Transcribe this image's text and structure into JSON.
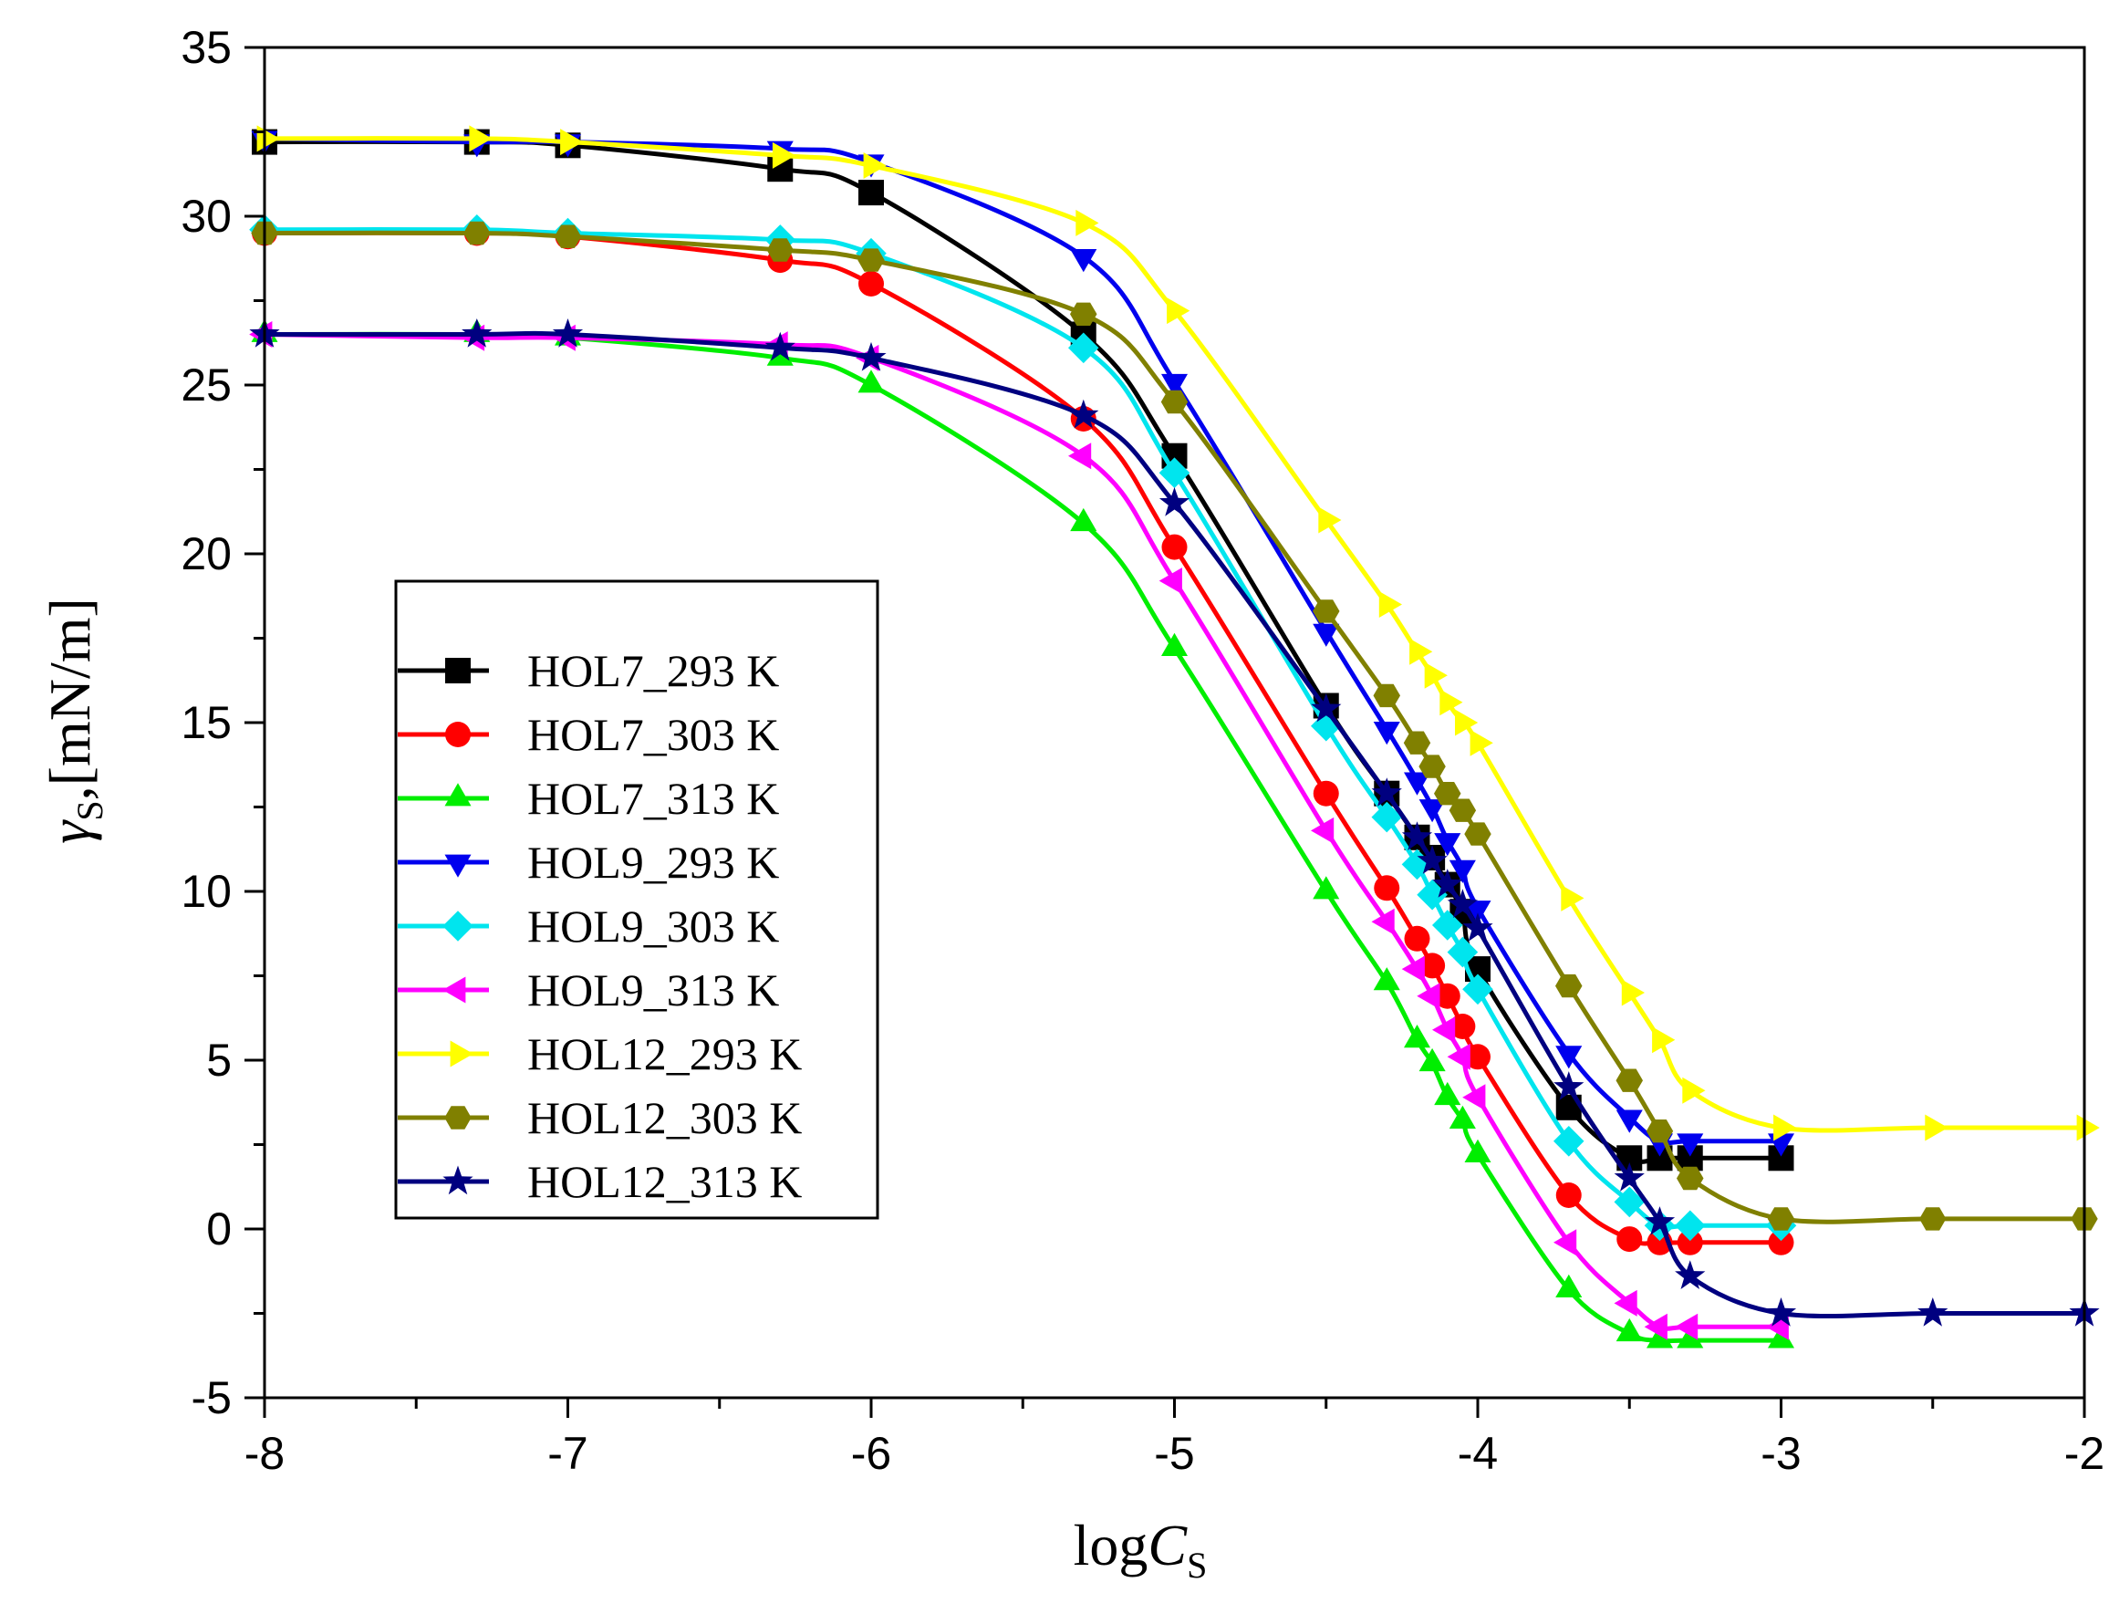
{
  "chart_data": {
    "type": "line",
    "title": "",
    "xlabel_main": "log",
    "xlabel_var": "C",
    "xlabel_sub": "S",
    "ylabel_main": "γ",
    "ylabel_sub": "S",
    "ylabel_rest": ",[mN/m]",
    "xlim": [
      -8,
      -2
    ],
    "ylim": [
      -5,
      35
    ],
    "xticks": [
      -8,
      -7,
      -6,
      -5,
      -4,
      -3,
      -2
    ],
    "xtick_labels": [
      "-8",
      "-7",
      "-6",
      "-5",
      "-4",
      "-3",
      "-2"
    ],
    "yticks": [
      -5,
      0,
      5,
      10,
      15,
      20,
      25,
      30,
      35
    ],
    "ytick_labels": [
      "-5",
      "0",
      "5",
      "10",
      "15",
      "20",
      "25",
      "30",
      "35"
    ],
    "grid": false,
    "legend_position": "center-left",
    "series": [
      {
        "name": "HOL7_293 K",
        "color": "#000000",
        "marker": "square",
        "x": [
          -8,
          -7.3,
          -7,
          -6.3,
          -6,
          -5.3,
          -5,
          -4.5,
          -4.3,
          -4.2,
          -4.15,
          -4.1,
          -4.05,
          -4,
          -3.7,
          -3.5,
          -3.4,
          -3.3,
          -3
        ],
        "y": [
          32.2,
          32.2,
          32.1,
          31.4,
          30.7,
          26.5,
          22.9,
          15.5,
          12.9,
          11.6,
          11.0,
          10.2,
          9.4,
          7.7,
          3.6,
          2.1,
          2.1,
          2.1,
          2.1
        ]
      },
      {
        "name": "HOL7_303 K",
        "color": "#ff0000",
        "marker": "circle",
        "x": [
          -8,
          -7.3,
          -7,
          -6.3,
          -6,
          -5.3,
          -5,
          -4.5,
          -4.3,
          -4.2,
          -4.15,
          -4.1,
          -4.05,
          -4,
          -3.7,
          -3.5,
          -3.4,
          -3.3,
          -3
        ],
        "y": [
          29.5,
          29.5,
          29.4,
          28.7,
          28.0,
          24.0,
          20.2,
          12.9,
          10.1,
          8.6,
          7.8,
          6.9,
          6.0,
          5.1,
          1.0,
          -0.3,
          -0.4,
          -0.4,
          -0.4
        ]
      },
      {
        "name": "HOL7_313 K",
        "color": "#00ee00",
        "marker": "triangle-up",
        "x": [
          -8,
          -7.3,
          -7,
          -6.3,
          -6,
          -5.3,
          -5,
          -4.5,
          -4.3,
          -4.2,
          -4.15,
          -4.1,
          -4.05,
          -4,
          -3.7,
          -3.5,
          -3.4,
          -3.3,
          -3
        ],
        "y": [
          26.5,
          26.5,
          26.4,
          25.8,
          25.0,
          20.9,
          17.2,
          10.0,
          7.3,
          5.6,
          4.9,
          3.9,
          3.2,
          2.2,
          -1.8,
          -3.1,
          -3.3,
          -3.3,
          -3.3
        ]
      },
      {
        "name": "HOL9_293 K",
        "color": "#0000ee",
        "marker": "triangle-down",
        "x": [
          -8,
          -7.3,
          -7,
          -6.3,
          -6,
          -5.3,
          -5,
          -4.5,
          -4.3,
          -4.2,
          -4.15,
          -4.1,
          -4.05,
          -4,
          -3.7,
          -3.5,
          -3.4,
          -3.3,
          -3
        ],
        "y": [
          32.3,
          32.2,
          32.2,
          32.0,
          31.6,
          28.8,
          25.1,
          17.7,
          14.8,
          13.3,
          12.5,
          11.5,
          10.7,
          9.5,
          5.2,
          3.3,
          2.6,
          2.6,
          2.6
        ]
      },
      {
        "name": "HOL9_303 K",
        "color": "#00e5ee",
        "marker": "diamond",
        "x": [
          -8,
          -7.3,
          -7,
          -6.3,
          -6,
          -5.3,
          -5,
          -4.5,
          -4.3,
          -4.2,
          -4.15,
          -4.1,
          -4.05,
          -4,
          -3.7,
          -3.5,
          -3.4,
          -3.3,
          -3
        ],
        "y": [
          29.6,
          29.6,
          29.5,
          29.3,
          28.9,
          26.1,
          22.4,
          14.9,
          12.2,
          10.8,
          9.9,
          9.0,
          8.2,
          7.1,
          2.6,
          0.8,
          0.1,
          0.1,
          0.1
        ]
      },
      {
        "name": "HOL9_313 K",
        "color": "#ff00ff",
        "marker": "triangle-left",
        "x": [
          -8,
          -7.3,
          -7,
          -6.3,
          -6,
          -5.3,
          -5,
          -4.5,
          -4.3,
          -4.2,
          -4.15,
          -4.1,
          -4.05,
          -4,
          -3.7,
          -3.5,
          -3.4,
          -3.3,
          -3
        ],
        "y": [
          26.5,
          26.4,
          26.4,
          26.2,
          25.8,
          22.9,
          19.2,
          11.8,
          9.1,
          7.7,
          6.9,
          5.9,
          5.1,
          3.9,
          -0.4,
          -2.2,
          -2.9,
          -2.9,
          -2.9
        ]
      },
      {
        "name": "HOL12_293 K",
        "color": "#ffff00",
        "marker": "triangle-right",
        "x": [
          -8,
          -7.3,
          -7,
          -6.3,
          -6,
          -5.3,
          -5,
          -4.5,
          -4.3,
          -4.2,
          -4.15,
          -4.1,
          -4.05,
          -4,
          -3.7,
          -3.5,
          -3.4,
          -3.3,
          -3,
          -2.5,
          -2
        ],
        "y": [
          32.3,
          32.3,
          32.2,
          31.8,
          31.5,
          29.8,
          27.2,
          21.0,
          18.5,
          17.1,
          16.4,
          15.6,
          15.0,
          14.4,
          9.8,
          7.0,
          5.6,
          4.1,
          3.0,
          3.0,
          3.0
        ]
      },
      {
        "name": "HOL12_303 K",
        "color": "#808000",
        "marker": "hexagon",
        "x": [
          -8,
          -7.3,
          -7,
          -6.3,
          -6,
          -5.3,
          -5,
          -4.5,
          -4.3,
          -4.2,
          -4.15,
          -4.1,
          -4.05,
          -4,
          -3.7,
          -3.5,
          -3.4,
          -3.3,
          -3,
          -2.5,
          -2
        ],
        "y": [
          29.5,
          29.5,
          29.4,
          29.0,
          28.7,
          27.1,
          24.5,
          18.3,
          15.8,
          14.4,
          13.7,
          12.9,
          12.4,
          11.7,
          7.2,
          4.4,
          2.9,
          1.5,
          0.3,
          0.3,
          0.3
        ]
      },
      {
        "name": "HOL12_313 K",
        "color": "#000080",
        "marker": "star",
        "x": [
          -8,
          -7.3,
          -7,
          -6.3,
          -6,
          -5.3,
          -5,
          -4.5,
          -4.3,
          -4.2,
          -4.15,
          -4.1,
          -4.05,
          -4,
          -3.7,
          -3.5,
          -3.4,
          -3.3,
          -3,
          -2.5,
          -2
        ],
        "y": [
          26.5,
          26.5,
          26.5,
          26.1,
          25.8,
          24.1,
          21.5,
          15.4,
          12.9,
          11.6,
          10.9,
          10.2,
          9.6,
          8.9,
          4.2,
          1.5,
          0.2,
          -1.4,
          -2.5,
          -2.5,
          -2.5
        ]
      }
    ]
  }
}
